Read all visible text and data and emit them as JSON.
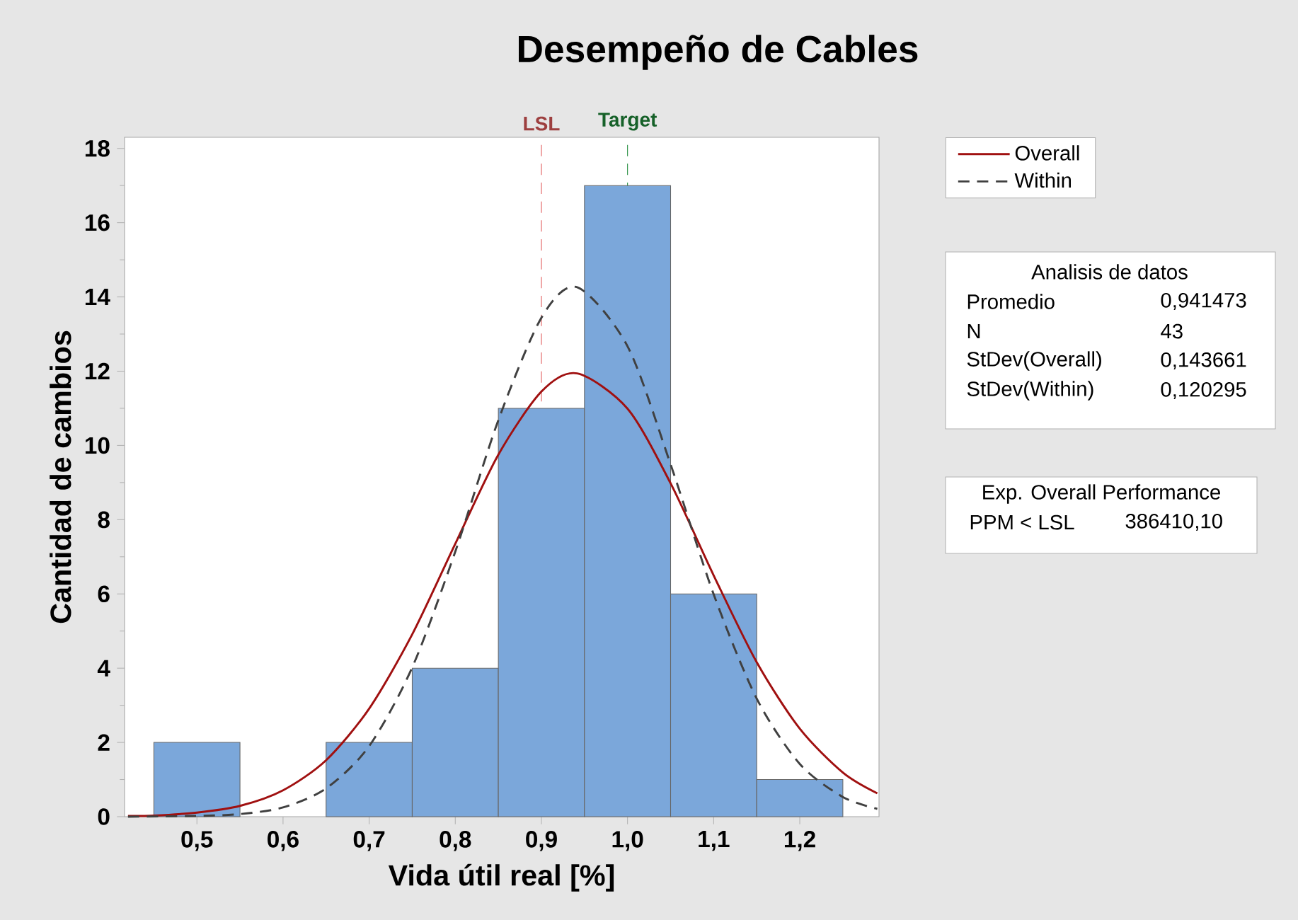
{
  "chart_data": {
    "type": "histogram",
    "title": "Desempeño de Cables",
    "xlabel": "Vida útil real [%]",
    "ylabel": "Cantidad de cambios",
    "series": [
      {
        "color": "#7ba7da",
        "bins": [
          0.45,
          0.55,
          0.65,
          0.75,
          0.85,
          0.95,
          1.05,
          1.15,
          1.25
        ],
        "values": [
          2,
          0,
          2,
          4,
          11,
          17,
          6,
          1
        ]
      },
      {
        "type": "line",
        "name": "Overall",
        "color": "#a01010",
        "line_style": "solid",
        "x": [
          0.42,
          0.45,
          0.5,
          0.55,
          0.6,
          0.65,
          0.7,
          0.75,
          0.8,
          0.85,
          0.9,
          0.9415,
          1.0,
          1.05,
          1.1,
          1.15,
          1.2,
          1.25,
          1.29
        ],
        "values": [
          0.02,
          0.03,
          0.11,
          0.29,
          0.71,
          1.52,
          2.91,
          4.91,
          7.35,
          9.75,
          11.45,
          11.94,
          10.99,
          8.98,
          6.5,
          4.16,
          2.37,
          1.19,
          0.63
        ]
      },
      {
        "type": "line",
        "name": "Within",
        "color": "#404040",
        "line_style": "dashed",
        "x": [
          0.42,
          0.5,
          0.55,
          0.6,
          0.65,
          0.7,
          0.75,
          0.8,
          0.85,
          0.9,
          0.9415,
          1.0,
          1.05,
          1.1,
          1.15,
          1.2,
          1.25,
          1.29
        ],
        "values": [
          0.0,
          0.02,
          0.07,
          0.25,
          0.76,
          1.9,
          4.02,
          7.14,
          10.68,
          13.44,
          14.26,
          12.67,
          9.49,
          5.99,
          3.18,
          1.42,
          0.53,
          0.21
        ]
      }
    ],
    "xlim": [
      0.416,
      1.292
    ],
    "ylim": [
      0,
      18.3
    ],
    "xticks": [
      {
        "value": 0.5,
        "label": "0,5"
      },
      {
        "value": 0.6,
        "label": "0,6"
      },
      {
        "value": 0.7,
        "label": "0,7"
      },
      {
        "value": 0.8,
        "label": "0,8"
      },
      {
        "value": 0.9,
        "label": "0,9"
      },
      {
        "value": 1.0,
        "label": "1,0"
      },
      {
        "value": 1.1,
        "label": "1,1"
      },
      {
        "value": 1.2,
        "label": "1,2"
      }
    ],
    "yticks": [
      0,
      2,
      4,
      6,
      8,
      10,
      12,
      14,
      16,
      18
    ],
    "ref_lines": [
      {
        "axis": "x",
        "value": 0.9,
        "label": "LSL",
        "color": "#e05a5a",
        "line_style": "dashed"
      },
      {
        "axis": "x",
        "value": 1.0,
        "label": "Target",
        "color": "#1f8a3a",
        "line_style": "dashed"
      }
    ],
    "legend": "top right",
    "grid": false,
    "annotations": [
      "Analisis de datos",
      "Promedio",
      "0,941473",
      "N",
      "43",
      "StDev(Overall)",
      "0,143661",
      "StDev(Within)",
      "0,120295",
      "Exp. Overall Performance",
      "PPM < LSL",
      "386410,10"
    ]
  }
}
